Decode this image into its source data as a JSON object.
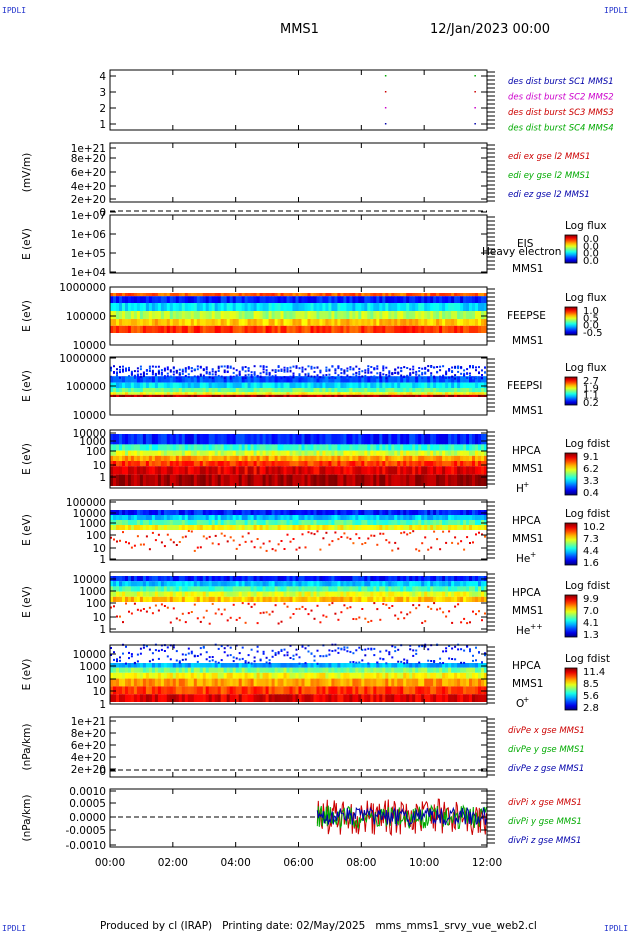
{
  "header": {
    "corner_label": "IPDLI",
    "spacecraft": "MMS1",
    "date_time": "12/Jan/2023 00:00"
  },
  "footer": {
    "produced_by": "Produced by cl (IRAP)",
    "printing_date": "Printing date: 02/May/2025",
    "script_name": "mms_mms1_srvy_vue_web2.cl"
  },
  "chart_data": {
    "type": "multi-panel time series / spectrogram",
    "x_ticks": [
      "00:00",
      "02:00",
      "04:00",
      "06:00",
      "08:00",
      "10:00",
      "12:00"
    ],
    "panels": [
      {
        "id": "burst",
        "yticks": [
          "4",
          "3",
          "2",
          "1"
        ],
        "legend": [
          {
            "text": "des dist burst SC1 MMS1",
            "color": "#0000aa"
          },
          {
            "text": "des dist burst SC2 MMS2",
            "color": "#cc00cc"
          },
          {
            "text": "des dist burst SC3 MMS3",
            "color": "#cc0000"
          },
          {
            "text": "des dist burst SC4 MMS4",
            "color": "#00aa00"
          }
        ],
        "burst_times_hours": [
          8.75,
          11.6
        ]
      },
      {
        "id": "edi",
        "ylabel": "(mV/m)",
        "yticks": [
          "1e+21",
          "8e+20",
          "6e+20",
          "4e+20",
          "2e+20",
          "0"
        ],
        "legend": [
          {
            "text": "edi ex gse l2 MMS1",
            "color": "#cc0000"
          },
          {
            "text": "edi ey gse l2 MMS1",
            "color": "#00aa00"
          },
          {
            "text": "edi ez gse l2 MMS1",
            "color": "#0000aa"
          }
        ]
      },
      {
        "id": "eis",
        "ylabel": "E (eV)",
        "yticks": [
          "1e+07",
          "1e+06",
          "1e+05",
          "1e+04"
        ],
        "instrument": "EIS",
        "overlay_text": "Heavy electron to",
        "spacecraft": "MMS1",
        "colorbar_title": "Log flux",
        "colorbar_ticks": [
          "0.0",
          "0.0",
          "0.0",
          "0.0"
        ]
      },
      {
        "id": "feepse",
        "ylabel": "E (eV)",
        "yticks": [
          "1000000",
          "100000",
          "10000"
        ],
        "instrument": "FEEPSE",
        "spacecraft": "MMS1",
        "colorbar_title": "Log flux",
        "colorbar_ticks": [
          "1.0",
          "0.5",
          "0.0",
          "-0.5"
        ]
      },
      {
        "id": "feepsi",
        "ylabel": "E (eV)",
        "yticks": [
          "1000000",
          "100000",
          "10000"
        ],
        "instrument": "FEEPSI",
        "spacecraft": "MMS1",
        "colorbar_title": "Log flux",
        "colorbar_ticks": [
          "2.7",
          "1.9",
          "1.1",
          "0.2"
        ]
      },
      {
        "id": "hpca_h",
        "ylabel": "E (eV)",
        "yticks": [
          "10000",
          "1000",
          "100",
          "10",
          "1"
        ],
        "instrument": "HPCA",
        "spacecraft": "MMS1",
        "species": "H",
        "species_sup": "+",
        "colorbar_title": "Log fdist",
        "colorbar_ticks": [
          "9.1",
          "6.2",
          "3.3",
          "0.4"
        ]
      },
      {
        "id": "hpca_he",
        "ylabel": "E (eV)",
        "yticks": [
          "100000",
          "10000",
          "1000",
          "100",
          "10",
          "1"
        ],
        "instrument": "HPCA",
        "spacecraft": "MMS1",
        "species": "He",
        "species_sup": "+",
        "colorbar_title": "Log fdist",
        "colorbar_ticks": [
          "10.2",
          "7.3",
          "4.4",
          "1.6"
        ]
      },
      {
        "id": "hpca_hepp",
        "ylabel": "E (eV)",
        "yticks": [
          "10000",
          "1000",
          "100",
          "10",
          "1"
        ],
        "instrument": "HPCA",
        "spacecraft": "MMS1",
        "species": "He",
        "species_sup": "++",
        "colorbar_title": "Log fdist",
        "colorbar_ticks": [
          "9.9",
          "7.0",
          "4.1",
          "1.3"
        ]
      },
      {
        "id": "hpca_o",
        "ylabel": "E (eV)",
        "yticks": [
          "10000",
          "1000",
          "100",
          "10",
          "1"
        ],
        "instrument": "HPCA",
        "spacecraft": "MMS1",
        "species": "O",
        "species_sup": "+",
        "colorbar_title": "Log fdist",
        "colorbar_ticks": [
          "11.4",
          "8.5",
          "5.6",
          "2.8"
        ]
      },
      {
        "id": "divpe",
        "ylabel": "(nPa/km)",
        "yticks": [
          "1e+21",
          "8e+20",
          "6e+20",
          "4e+20",
          "2e+20",
          "0"
        ],
        "legend": [
          {
            "text": "divPe x gse MMS1",
            "color": "#cc0000"
          },
          {
            "text": "divPe y gse MMS1",
            "color": "#00aa00"
          },
          {
            "text": "divPe z gse MMS1",
            "color": "#0000aa"
          }
        ]
      },
      {
        "id": "divpi",
        "ylabel": "(nPa/km)",
        "yticks": [
          "0.0010",
          "0.0005",
          "0.0000",
          "-0.0005",
          "-0.0010"
        ],
        "legend": [
          {
            "text": "divPi x gse MMS1",
            "color": "#cc0000"
          },
          {
            "text": "divPi y gse MMS1",
            "color": "#00aa00"
          },
          {
            "text": "divPi z gse MMS1",
            "color": "#0000aa"
          }
        ],
        "data_start_hours": 6.6,
        "ylim": [
          -0.0012,
          0.0012
        ]
      }
    ]
  }
}
